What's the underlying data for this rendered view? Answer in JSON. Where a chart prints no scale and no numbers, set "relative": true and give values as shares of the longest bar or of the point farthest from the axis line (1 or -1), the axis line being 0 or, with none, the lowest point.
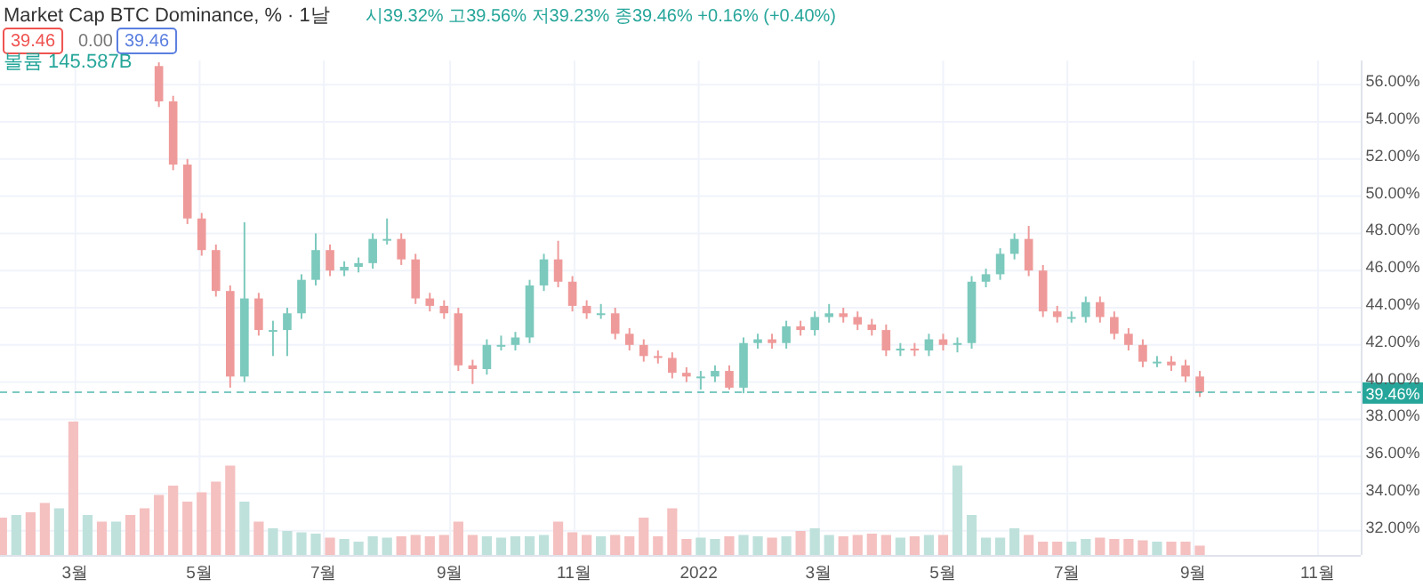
{
  "chart_data": [
    {
      "type": "candlestick",
      "title": "Market Cap BTC Dominance, % · 1날",
      "annotations": [
        "시39.32% 고39.56% 저39.23% 종39.46% +0.16% (+0.40%)",
        "39.46",
        "0.00",
        "39.46"
      ],
      "x": [
        "2021-04-11",
        "2021-04-18",
        "2021-04-25",
        "2021-05-02",
        "2021-05-09",
        "2021-05-16",
        "2021-05-23",
        "2021-05-30",
        "2021-06-06",
        "2021-06-13",
        "2021-06-20",
        "2021-06-27",
        "2021-07-04",
        "2021-07-11",
        "2021-07-18",
        "2021-07-25",
        "2021-08-01",
        "2021-08-08",
        "2021-08-15",
        "2021-08-22",
        "2021-08-29",
        "2021-09-05",
        "2021-09-12",
        "2021-09-19",
        "2021-09-26",
        "2021-10-03",
        "2021-10-10",
        "2021-10-17",
        "2021-10-24",
        "2021-10-31",
        "2021-11-07",
        "2021-11-14",
        "2021-11-21",
        "2021-11-28",
        "2021-12-05",
        "2021-12-12",
        "2021-12-19",
        "2021-12-26",
        "2022-01-02",
        "2022-01-09",
        "2022-01-16",
        "2022-01-23",
        "2022-01-30",
        "2022-02-06",
        "2022-02-13",
        "2022-02-20",
        "2022-02-27",
        "2022-03-06",
        "2022-03-13",
        "2022-03-20",
        "2022-03-27",
        "2022-04-03",
        "2022-04-10",
        "2022-04-17",
        "2022-04-24",
        "2022-05-01",
        "2022-05-08",
        "2022-05-15",
        "2022-05-22",
        "2022-05-29",
        "2022-06-05",
        "2022-06-12",
        "2022-06-19",
        "2022-06-26",
        "2022-07-03",
        "2022-07-10",
        "2022-07-17",
        "2022-07-24",
        "2022-07-31",
        "2022-08-07",
        "2022-08-14",
        "2022-08-21",
        "2022-08-28",
        "2022-09-04"
      ],
      "ohlc": [
        [
          57.0,
          57.2,
          54.8,
          55.1
        ],
        [
          55.1,
          55.4,
          51.4,
          51.7
        ],
        [
          51.7,
          52.0,
          48.5,
          48.8
        ],
        [
          48.8,
          49.1,
          46.8,
          47.1
        ],
        [
          47.1,
          47.4,
          44.6,
          44.9
        ],
        [
          44.9,
          45.2,
          39.7,
          40.3
        ],
        [
          40.3,
          48.6,
          40.0,
          44.5
        ],
        [
          44.5,
          44.8,
          42.5,
          42.8
        ],
        [
          42.8,
          43.3,
          41.4,
          42.8
        ],
        [
          42.8,
          44.0,
          41.4,
          43.7
        ],
        [
          43.7,
          45.8,
          43.4,
          45.5
        ],
        [
          45.5,
          48.0,
          45.2,
          47.1
        ],
        [
          47.1,
          47.4,
          45.7,
          46.0
        ],
        [
          46.0,
          46.5,
          45.7,
          46.2
        ],
        [
          46.2,
          46.7,
          45.9,
          46.4
        ],
        [
          46.4,
          48.0,
          46.1,
          47.7
        ],
        [
          47.7,
          48.8,
          47.4,
          47.7
        ],
        [
          47.7,
          48.0,
          46.3,
          46.6
        ],
        [
          46.6,
          46.9,
          44.2,
          44.5
        ],
        [
          44.5,
          44.8,
          43.8,
          44.1
        ],
        [
          44.1,
          44.4,
          43.4,
          43.7
        ],
        [
          43.7,
          44.0,
          40.6,
          40.9
        ],
        [
          40.9,
          41.2,
          39.9,
          40.7
        ],
        [
          40.7,
          42.3,
          40.4,
          42.0
        ],
        [
          42.0,
          42.5,
          41.7,
          42.0
        ],
        [
          42.0,
          42.7,
          41.7,
          42.4
        ],
        [
          42.4,
          45.5,
          42.1,
          45.2
        ],
        [
          45.2,
          46.9,
          44.9,
          46.6
        ],
        [
          46.6,
          47.6,
          45.1,
          45.4
        ],
        [
          45.4,
          45.7,
          43.8,
          44.1
        ],
        [
          44.1,
          44.4,
          43.4,
          43.7
        ],
        [
          43.7,
          44.2,
          43.4,
          43.7
        ],
        [
          43.7,
          44.0,
          42.3,
          42.6
        ],
        [
          42.6,
          42.9,
          41.7,
          42.0
        ],
        [
          42.0,
          42.3,
          41.1,
          41.4
        ],
        [
          41.4,
          41.7,
          41.0,
          41.3
        ],
        [
          41.3,
          41.6,
          40.2,
          40.5
        ],
        [
          40.5,
          40.8,
          40.0,
          40.3
        ],
        [
          40.3,
          40.6,
          39.6,
          40.3
        ],
        [
          40.3,
          40.9,
          40.0,
          40.6
        ],
        [
          40.6,
          40.9,
          39.6,
          39.7
        ],
        [
          39.7,
          42.4,
          39.4,
          42.1
        ],
        [
          42.1,
          42.6,
          41.8,
          42.3
        ],
        [
          42.3,
          42.6,
          41.8,
          42.1
        ],
        [
          42.1,
          43.3,
          41.8,
          43.0
        ],
        [
          43.0,
          43.3,
          42.5,
          42.8
        ],
        [
          42.8,
          43.8,
          42.5,
          43.5
        ],
        [
          43.5,
          44.2,
          43.2,
          43.7
        ],
        [
          43.7,
          44.0,
          43.2,
          43.5
        ],
        [
          43.5,
          43.8,
          42.8,
          43.1
        ],
        [
          43.1,
          43.4,
          42.5,
          42.8
        ],
        [
          42.8,
          43.1,
          41.4,
          41.7
        ],
        [
          41.7,
          42.1,
          41.4,
          41.8
        ],
        [
          41.8,
          42.1,
          41.4,
          41.7
        ],
        [
          41.7,
          42.6,
          41.4,
          42.3
        ],
        [
          42.3,
          42.6,
          41.7,
          42.0
        ],
        [
          42.0,
          42.4,
          41.6,
          42.1
        ],
        [
          42.1,
          45.7,
          41.8,
          45.4
        ],
        [
          45.4,
          46.1,
          45.1,
          45.8
        ],
        [
          45.8,
          47.2,
          45.5,
          46.9
        ],
        [
          46.9,
          48.0,
          46.6,
          47.7
        ],
        [
          47.7,
          48.4,
          45.7,
          46.0
        ],
        [
          46.0,
          46.3,
          43.5,
          43.8
        ],
        [
          43.8,
          44.1,
          43.2,
          43.5
        ],
        [
          43.5,
          43.8,
          43.2,
          43.5
        ],
        [
          43.5,
          44.6,
          43.2,
          44.3
        ],
        [
          44.3,
          44.6,
          43.2,
          43.5
        ],
        [
          43.5,
          43.8,
          42.3,
          42.6
        ],
        [
          42.6,
          42.9,
          41.7,
          42.0
        ],
        [
          42.0,
          42.3,
          40.8,
          41.1
        ],
        [
          41.1,
          41.4,
          40.8,
          41.1
        ],
        [
          41.1,
          41.4,
          40.6,
          40.9
        ],
        [
          40.9,
          41.2,
          40.0,
          40.3
        ],
        [
          40.3,
          40.6,
          39.2,
          39.46
        ]
      ],
      "colors": [
        "#ef9a9a",
        "#ef9a9a",
        "#ef9a9a",
        "#ef9a9a",
        "#ef9a9a",
        "#ef9a9a",
        "#7cc9bd",
        "#ef9a9a",
        "#7cc9bd",
        "#7cc9bd",
        "#7cc9bd",
        "#7cc9bd",
        "#ef9a9a",
        "#7cc9bd",
        "#7cc9bd",
        "#7cc9bd",
        "#7cc9bd",
        "#ef9a9a",
        "#ef9a9a",
        "#ef9a9a",
        "#ef9a9a",
        "#ef9a9a",
        "#ef9a9a",
        "#7cc9bd",
        "#7cc9bd",
        "#7cc9bd",
        "#7cc9bd",
        "#7cc9bd",
        "#ef9a9a",
        "#ef9a9a",
        "#ef9a9a",
        "#7cc9bd",
        "#ef9a9a",
        "#ef9a9a",
        "#ef9a9a",
        "#ef9a9a",
        "#ef9a9a",
        "#ef9a9a",
        "#7cc9bd",
        "#7cc9bd",
        "#ef9a9a",
        "#7cc9bd",
        "#7cc9bd",
        "#ef9a9a",
        "#7cc9bd",
        "#ef9a9a",
        "#7cc9bd",
        "#7cc9bd",
        "#ef9a9a",
        "#ef9a9a",
        "#ef9a9a",
        "#ef9a9a",
        "#7cc9bd",
        "#ef9a9a",
        "#7cc9bd",
        "#ef9a9a",
        "#7cc9bd",
        "#7cc9bd",
        "#7cc9bd",
        "#7cc9bd",
        "#7cc9bd",
        "#ef9a9a",
        "#ef9a9a",
        "#ef9a9a",
        "#7cc9bd",
        "#7cc9bd",
        "#ef9a9a",
        "#ef9a9a",
        "#ef9a9a",
        "#ef9a9a",
        "#7cc9bd",
        "#ef9a9a",
        "#ef9a9a",
        "#ef9a9a"
      ],
      "xlim": [
        "2021-01-23",
        "2022-11-22"
      ],
      "xticks": [
        {
          "value": "2021-03-01",
          "label": null
        },
        {
          "value": "2021-05-01",
          "label": null
        },
        {
          "value": "2021-07-01",
          "label": null
        },
        {
          "value": "2021-09-01",
          "label": null
        },
        {
          "value": "2021-11-01",
          "label": null
        },
        {
          "value": "2022-01-01",
          "label": null
        },
        {
          "value": "2022-03-01",
          "label": null
        },
        {
          "value": "2022-05-01",
          "label": null
        },
        {
          "value": "2022-07-01",
          "label": null
        },
        {
          "value": "2022-09-01",
          "label": null
        },
        {
          "value": "2022-11-01",
          "label": null
        }
      ],
      "ylim": [
        30.7,
        57.3
      ],
      "yticks": [
        {
          "value": 32,
          "label": "32.00%"
        },
        {
          "value": 34,
          "label": "34.00%"
        },
        {
          "value": 36,
          "label": "36.00%"
        },
        {
          "value": 38,
          "label": "38.00%"
        },
        {
          "value": 40,
          "label": "40.00%"
        },
        {
          "value": 42,
          "label": "42.00%"
        },
        {
          "value": 44,
          "label": "44.00%"
        },
        {
          "value": 46,
          "label": "46.00%"
        },
        {
          "value": 48,
          "label": "48.00%"
        },
        {
          "value": 50,
          "label": "50.00%"
        },
        {
          "value": 52,
          "label": "52.00%"
        },
        {
          "value": 54,
          "label": "54.00%"
        },
        {
          "value": 56,
          "label": "56.00%"
        }
      ],
      "grid": true,
      "tick_labels": "y",
      "ref_lines": [
        {
          "axis": "y",
          "value": 39.46,
          "label": "39.46%",
          "color": "#26a69a",
          "line_style": "dashed"
        }
      ]
    },
    {
      "type": "bar",
      "relative": true,
      "annotations": [
        "볼륨 145.587B"
      ],
      "tick_labels": "x",
      "xlim": [
        "2021-01-23",
        "2022-11-22"
      ],
      "xticks": [
        {
          "value": "2021-03-01",
          "label": "3월"
        },
        {
          "value": "2021-05-01",
          "label": "5월"
        },
        {
          "value": "2021-07-01",
          "label": "7월"
        },
        {
          "value": "2021-09-01",
          "label": "9월"
        },
        {
          "value": "2021-11-01",
          "label": "11월"
        },
        {
          "value": "2022-01-01",
          "label": "2022"
        },
        {
          "value": "2022-03-01",
          "label": "3월"
        },
        {
          "value": "2022-05-01",
          "label": "5월"
        },
        {
          "value": "2022-07-01",
          "label": "7월"
        },
        {
          "value": "2022-09-01",
          "label": "9월"
        },
        {
          "value": "2022-11-01",
          "label": "11월"
        }
      ],
      "x": [
        "2021-01-24",
        "2021-01-31",
        "2021-02-07",
        "2021-02-14",
        "2021-02-21",
        "2021-02-28",
        "2021-03-07",
        "2021-03-14",
        "2021-03-21",
        "2021-03-28",
        "2021-04-04",
        "2021-04-11",
        "2021-04-18",
        "2021-04-25",
        "2021-05-02",
        "2021-05-09",
        "2021-05-16",
        "2021-05-23",
        "2021-05-30",
        "2021-06-06",
        "2021-06-13",
        "2021-06-20",
        "2021-06-27",
        "2021-07-04",
        "2021-07-11",
        "2021-07-18",
        "2021-07-25",
        "2021-08-01",
        "2021-08-08",
        "2021-08-15",
        "2021-08-22",
        "2021-08-29",
        "2021-09-05",
        "2021-09-12",
        "2021-09-19",
        "2021-09-26",
        "2021-10-03",
        "2021-10-10",
        "2021-10-17",
        "2021-10-24",
        "2021-10-31",
        "2021-11-07",
        "2021-11-14",
        "2021-11-21",
        "2021-11-28",
        "2021-12-05",
        "2021-12-12",
        "2021-12-19",
        "2021-12-26",
        "2022-01-02",
        "2022-01-09",
        "2022-01-16",
        "2022-01-23",
        "2022-01-30",
        "2022-02-06",
        "2022-02-13",
        "2022-02-20",
        "2022-02-27",
        "2022-03-06",
        "2022-03-13",
        "2022-03-20",
        "2022-03-27",
        "2022-04-03",
        "2022-04-10",
        "2022-04-17",
        "2022-04-24",
        "2022-05-01",
        "2022-05-08",
        "2022-05-15",
        "2022-05-22",
        "2022-05-29",
        "2022-06-05",
        "2022-06-12",
        "2022-06-19",
        "2022-06-26",
        "2022-07-03",
        "2022-07-10",
        "2022-07-17",
        "2022-07-24",
        "2022-07-31",
        "2022-08-07",
        "2022-08-14",
        "2022-08-21",
        "2022-08-28",
        "2022-09-04"
      ],
      "values": [
        0.28,
        0.3,
        0.32,
        0.39,
        0.35,
        1.0,
        0.3,
        0.25,
        0.25,
        0.3,
        0.35,
        0.45,
        0.52,
        0.4,
        0.47,
        0.55,
        0.67,
        0.4,
        0.25,
        0.2,
        0.18,
        0.17,
        0.16,
        0.13,
        0.12,
        0.1,
        0.14,
        0.13,
        0.14,
        0.15,
        0.14,
        0.15,
        0.25,
        0.15,
        0.14,
        0.13,
        0.14,
        0.14,
        0.15,
        0.25,
        0.17,
        0.15,
        0.14,
        0.15,
        0.14,
        0.28,
        0.14,
        0.35,
        0.12,
        0.13,
        0.12,
        0.14,
        0.15,
        0.14,
        0.13,
        0.14,
        0.18,
        0.2,
        0.15,
        0.14,
        0.15,
        0.16,
        0.15,
        0.13,
        0.14,
        0.15,
        0.15,
        0.67,
        0.3,
        0.13,
        0.13,
        0.2,
        0.15,
        0.1,
        0.1,
        0.1,
        0.12,
        0.13,
        0.12,
        0.12,
        0.11,
        0.1,
        0.1,
        0.1,
        0.07
      ],
      "colors": [
        "#f5c0c0",
        "#bfe1dc",
        "#f5c0c0",
        "#f5c0c0",
        "#bfe1dc",
        "#f5c0c0",
        "#bfe1dc",
        "#f5c0c0",
        "#bfe1dc",
        "#f5c0c0",
        "#f5c0c0",
        "#f5c0c0",
        "#f5c0c0",
        "#f5c0c0",
        "#f5c0c0",
        "#f5c0c0",
        "#f5c0c0",
        "#bfe1dc",
        "#f5c0c0",
        "#bfe1dc",
        "#bfe1dc",
        "#bfe1dc",
        "#bfe1dc",
        "#f5c0c0",
        "#bfe1dc",
        "#bfe1dc",
        "#bfe1dc",
        "#bfe1dc",
        "#f5c0c0",
        "#f5c0c0",
        "#f5c0c0",
        "#f5c0c0",
        "#f5c0c0",
        "#f5c0c0",
        "#bfe1dc",
        "#bfe1dc",
        "#bfe1dc",
        "#bfe1dc",
        "#bfe1dc",
        "#f5c0c0",
        "#f5c0c0",
        "#f5c0c0",
        "#bfe1dc",
        "#f5c0c0",
        "#f5c0c0",
        "#f5c0c0",
        "#f5c0c0",
        "#f5c0c0",
        "#f5c0c0",
        "#bfe1dc",
        "#bfe1dc",
        "#f5c0c0",
        "#bfe1dc",
        "#bfe1dc",
        "#f5c0c0",
        "#bfe1dc",
        "#f5c0c0",
        "#bfe1dc",
        "#bfe1dc",
        "#f5c0c0",
        "#f5c0c0",
        "#f5c0c0",
        "#f5c0c0",
        "#bfe1dc",
        "#f5c0c0",
        "#bfe1dc",
        "#f5c0c0",
        "#bfe1dc",
        "#bfe1dc",
        "#bfe1dc",
        "#bfe1dc",
        "#bfe1dc",
        "#f5c0c0",
        "#f5c0c0",
        "#f5c0c0",
        "#bfe1dc",
        "#bfe1dc",
        "#f5c0c0",
        "#f5c0c0",
        "#f5c0c0",
        "#f5c0c0",
        "#bfe1dc",
        "#f5c0c0",
        "#f5c0c0",
        "#f5c0c0"
      ]
    }
  ]
}
